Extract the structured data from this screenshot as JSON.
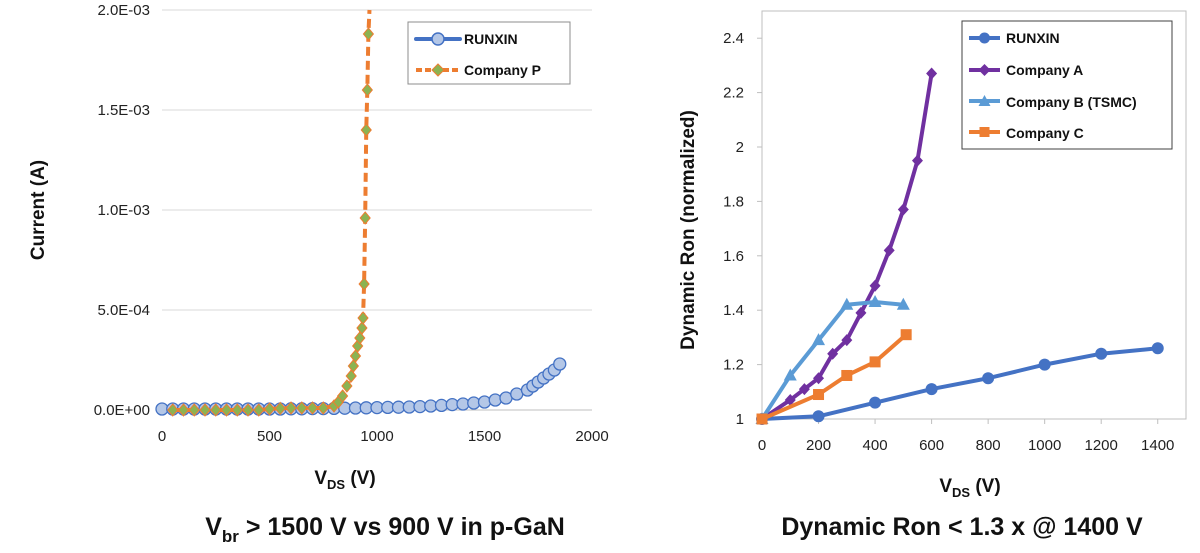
{
  "chart_data": [
    {
      "type": "scatter",
      "xlabel": "V",
      "xlabel_sub": "DS",
      "xlabel_unit": " (V)",
      "ylabel": "Current (A)",
      "xlim": [
        0,
        2000
      ],
      "ylim": [
        0,
        0.002
      ],
      "xticks": [
        0,
        500,
        1000,
        1500,
        2000
      ],
      "xtick_labels": [
        "0",
        "500",
        "1000",
        "1500",
        "2000"
      ],
      "yticks": [
        0,
        0.0005,
        0.001,
        0.0015,
        0.002
      ],
      "ytick_labels": [
        "0.0E+00",
        "5.0E-04",
        "1.0E-03",
        "1.5E-03",
        "2.0E-03"
      ],
      "legend_position": "top-right",
      "caption_pre": "V",
      "caption_sub": "br",
      "caption_post": " > 1500 V vs 900 V in p-GaN",
      "series": [
        {
          "name": "RUNXIN",
          "color": "#4472c4",
          "fill": "#b4c7e7",
          "marker": "circle",
          "x": [
            0,
            50,
            100,
            150,
            200,
            250,
            300,
            350,
            400,
            450,
            500,
            550,
            600,
            650,
            700,
            750,
            800,
            850,
            900,
            950,
            1000,
            1050,
            1100,
            1150,
            1200,
            1250,
            1300,
            1350,
            1400,
            1450,
            1500,
            1550,
            1600,
            1650,
            1700,
            1725,
            1750,
            1775,
            1800,
            1825,
            1850
          ],
          "y": [
            5e-06,
            5e-06,
            5e-06,
            5e-06,
            5e-06,
            5e-06,
            5e-06,
            5e-06,
            5e-06,
            5e-06,
            5e-06,
            5e-06,
            6e-06,
            6e-06,
            7e-06,
            7e-06,
            8e-06,
            9e-06,
            1e-05,
            1.1e-05,
            1.2e-05,
            1.3e-05,
            1.4e-05,
            1.5e-05,
            1.7e-05,
            2e-05,
            2.3e-05,
            2.7e-05,
            3e-05,
            3.5e-05,
            4e-05,
            5e-05,
            6e-05,
            8e-05,
            0.0001,
            0.00012,
            0.00014,
            0.00016,
            0.00018,
            0.0002,
            0.00023
          ]
        },
        {
          "name": "Company P",
          "color": "#ed7d31",
          "fill": "#8cb352",
          "marker": "diamond",
          "x": [
            50,
            100,
            150,
            200,
            250,
            300,
            350,
            400,
            450,
            500,
            550,
            600,
            650,
            700,
            750,
            800,
            820,
            840,
            860,
            880,
            890,
            900,
            910,
            920,
            930,
            935,
            940,
            945,
            950,
            955,
            960
          ],
          "y": [
            0,
            0,
            0,
            0,
            0,
            0,
            0,
            0,
            0,
            5e-06,
            8e-06,
            1e-05,
            1e-05,
            1e-05,
            1e-05,
            2e-05,
            4e-05,
            7e-05,
            0.00012,
            0.00017,
            0.00022,
            0.00027,
            0.00032,
            0.00036,
            0.00041,
            0.00046,
            0.00063,
            0.00096,
            0.0014,
            0.0016,
            0.00188
          ]
        }
      ]
    },
    {
      "type": "line",
      "xlabel": "V",
      "xlabel_sub": "DS",
      "xlabel_unit": " (V)",
      "ylabel": "Dynamic Ron (normalized)",
      "xlim": [
        0,
        1500
      ],
      "ylim": [
        1,
        2.5
      ],
      "xticks": [
        0,
        200,
        400,
        600,
        800,
        1000,
        1200,
        1400
      ],
      "xtick_labels": [
        "0",
        "200",
        "400",
        "600",
        "800",
        "1000",
        "1200",
        "1400"
      ],
      "yticks": [
        1,
        1.2,
        1.4,
        1.6,
        1.8,
        2,
        2.2,
        2.4
      ],
      "ytick_labels": [
        "1",
        "1.2",
        "1.4",
        "1.6",
        "1.8",
        "2",
        "2.2",
        "2.4"
      ],
      "legend_position": "top-right",
      "caption": "Dynamic Ron < 1.3 x @ 1400 V",
      "series": [
        {
          "name": "RUNXIN",
          "color": "#4472c4",
          "marker": "circle",
          "x": [
            0,
            200,
            400,
            600,
            800,
            1000,
            1200,
            1400
          ],
          "y": [
            1.0,
            1.01,
            1.06,
            1.11,
            1.15,
            1.2,
            1.24,
            1.26
          ]
        },
        {
          "name": "Company A",
          "color": "#7030a0",
          "marker": "diamond",
          "x": [
            0,
            100,
            150,
            200,
            250,
            300,
            350,
            400,
            450,
            500,
            550,
            600
          ],
          "y": [
            1.0,
            1.07,
            1.11,
            1.15,
            1.24,
            1.29,
            1.39,
            1.49,
            1.62,
            1.77,
            1.95,
            2.27
          ]
        },
        {
          "name": "Company B (TSMC)",
          "color": "#5b9bd5",
          "marker": "triangle",
          "x": [
            0,
            100,
            200,
            300,
            400,
            500
          ],
          "y": [
            1.0,
            1.16,
            1.29,
            1.42,
            1.43,
            1.42
          ]
        },
        {
          "name": "Company C",
          "color": "#ed7d31",
          "marker": "square",
          "x": [
            0,
            200,
            300,
            400,
            510
          ],
          "y": [
            1.0,
            1.09,
            1.16,
            1.21,
            1.31
          ]
        }
      ]
    }
  ]
}
